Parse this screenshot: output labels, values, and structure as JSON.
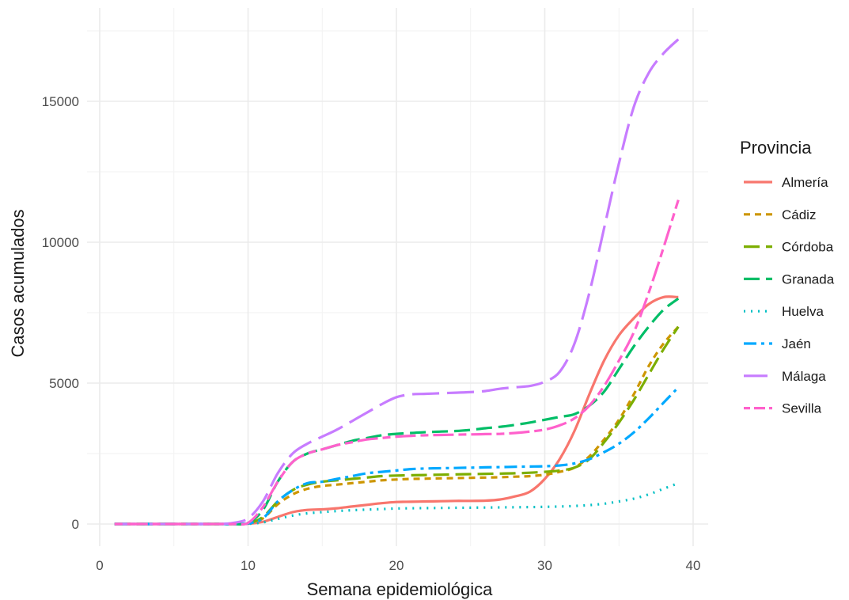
{
  "chart_data": {
    "type": "line",
    "xlabel": "Semana epidemiológica",
    "ylabel": "Casos acumulados",
    "xlim": [
      0,
      40
    ],
    "ylim": [
      -800,
      17500
    ],
    "xticks": [
      0,
      10,
      20,
      30,
      40
    ],
    "yticks": [
      0,
      5000,
      10000,
      15000
    ],
    "grid": true,
    "legend": {
      "title": "Provincia",
      "position": "right"
    },
    "x": [
      1,
      2,
      3,
      4,
      5,
      6,
      7,
      8,
      9,
      10,
      11,
      12,
      13,
      14,
      15,
      16,
      17,
      18,
      19,
      20,
      21,
      22,
      23,
      24,
      25,
      26,
      27,
      28,
      29,
      30,
      31,
      32,
      33,
      34,
      35,
      36,
      37,
      38,
      39
    ],
    "series": [
      {
        "name": "Almería",
        "color": "#F8766D",
        "dash": "solid",
        "values": [
          0,
          0,
          0,
          0,
          0,
          0,
          0,
          0,
          0,
          10,
          80,
          250,
          420,
          500,
          520,
          560,
          620,
          680,
          740,
          780,
          790,
          800,
          810,
          820,
          820,
          830,
          870,
          980,
          1150,
          1600,
          2300,
          3300,
          4600,
          5800,
          6700,
          7300,
          7800,
          8050,
          8050
        ]
      },
      {
        "name": "Cádiz",
        "color": "#CD9600",
        "dash": "short",
        "values": [
          0,
          0,
          0,
          0,
          0,
          0,
          0,
          0,
          0,
          20,
          200,
          700,
          1050,
          1250,
          1350,
          1400,
          1450,
          1500,
          1550,
          1580,
          1600,
          1610,
          1620,
          1630,
          1640,
          1650,
          1660,
          1680,
          1700,
          1750,
          1850,
          2000,
          2400,
          3000,
          3700,
          4600,
          5600,
          6400,
          7000
        ]
      },
      {
        "name": "Córdoba",
        "color": "#7CAE00",
        "dash": "long",
        "values": [
          0,
          0,
          0,
          0,
          0,
          0,
          0,
          0,
          0,
          20,
          250,
          800,
          1200,
          1400,
          1500,
          1550,
          1600,
          1650,
          1700,
          1720,
          1730,
          1740,
          1750,
          1760,
          1770,
          1780,
          1790,
          1800,
          1820,
          1850,
          1900,
          2000,
          2300,
          2900,
          3600,
          4400,
          5300,
          6200,
          7000
        ]
      },
      {
        "name": "Granada",
        "color": "#00BE67",
        "dash": "long",
        "values": [
          0,
          0,
          0,
          0,
          0,
          0,
          0,
          0,
          0,
          40,
          500,
          1500,
          2200,
          2500,
          2650,
          2800,
          2950,
          3050,
          3150,
          3200,
          3230,
          3260,
          3280,
          3300,
          3340,
          3400,
          3450,
          3520,
          3600,
          3700,
          3800,
          3900,
          4200,
          4700,
          5500,
          6300,
          7000,
          7600,
          8000
        ]
      },
      {
        "name": "Huelva",
        "color": "#00BFC4",
        "dash": "dotted",
        "values": [
          0,
          0,
          0,
          0,
          0,
          0,
          0,
          0,
          0,
          5,
          60,
          180,
          300,
          380,
          420,
          460,
          490,
          510,
          530,
          550,
          560,
          565,
          570,
          575,
          580,
          585,
          590,
          595,
          600,
          610,
          620,
          640,
          670,
          720,
          800,
          900,
          1050,
          1250,
          1450
        ]
      },
      {
        "name": "Jaén",
        "color": "#00A9FF",
        "dash": "dashdot",
        "values": [
          0,
          0,
          0,
          0,
          0,
          0,
          0,
          0,
          0,
          20,
          200,
          800,
          1200,
          1450,
          1500,
          1600,
          1700,
          1800,
          1850,
          1900,
          1950,
          1970,
          1980,
          1990,
          2000,
          2010,
          2020,
          2030,
          2040,
          2050,
          2080,
          2150,
          2300,
          2550,
          2850,
          3250,
          3750,
          4300,
          4850
        ]
      },
      {
        "name": "Málaga",
        "color": "#C77CFF",
        "dash": "verylong",
        "values": [
          0,
          0,
          0,
          0,
          0,
          0,
          0,
          0,
          40,
          200,
          800,
          1800,
          2500,
          2850,
          3100,
          3350,
          3650,
          3950,
          4250,
          4500,
          4600,
          4620,
          4640,
          4660,
          4680,
          4720,
          4800,
          4850,
          4900,
          5050,
          5400,
          6400,
          8200,
          10500,
          12800,
          14800,
          16000,
          16700,
          17200
        ]
      },
      {
        "name": "Sevilla",
        "color": "#FF61CC",
        "dash": "twodash",
        "values": [
          0,
          0,
          0,
          0,
          0,
          0,
          0,
          0,
          0,
          40,
          600,
          1500,
          2200,
          2500,
          2650,
          2800,
          2900,
          3000,
          3050,
          3100,
          3130,
          3150,
          3160,
          3170,
          3180,
          3190,
          3200,
          3230,
          3280,
          3350,
          3500,
          3750,
          4200,
          4900,
          5800,
          6800,
          8200,
          9800,
          11500
        ]
      }
    ]
  }
}
